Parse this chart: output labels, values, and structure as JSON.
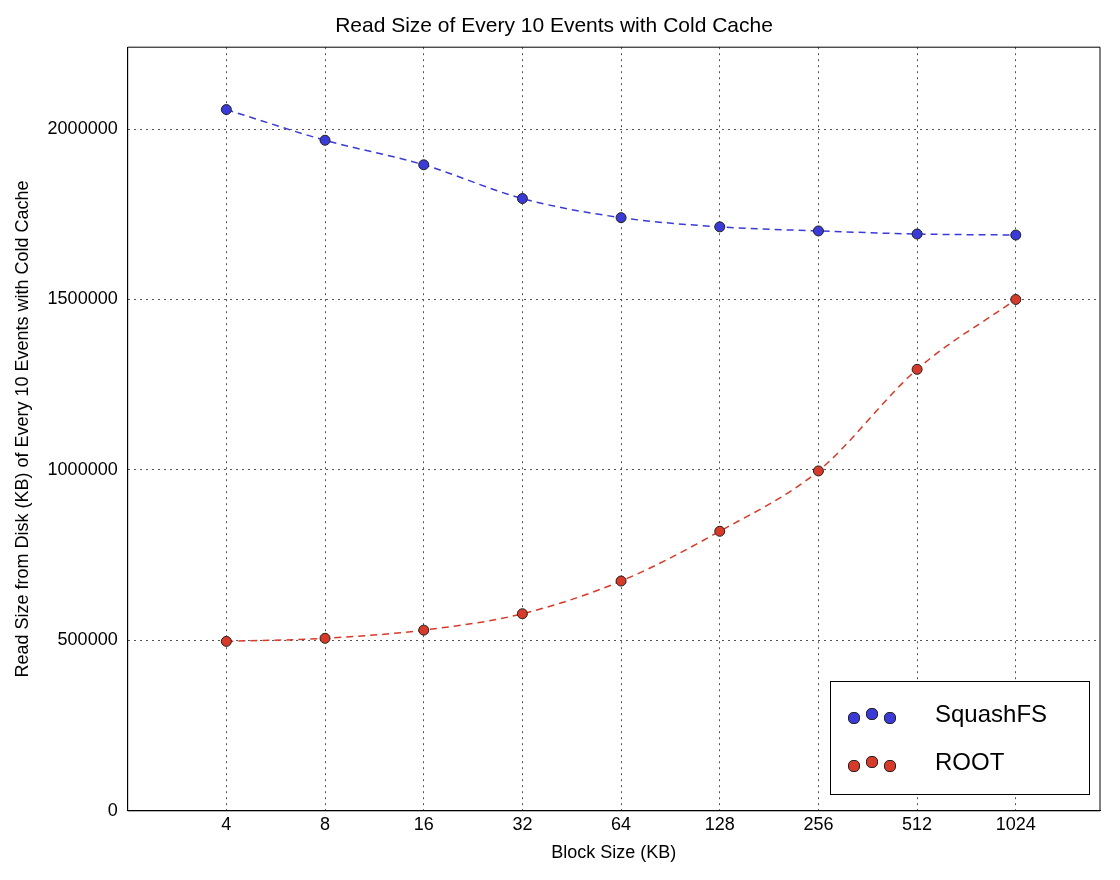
{
  "chart_data": {
    "type": "line",
    "title": "Read Size of Every 10 Events with Cold Cache",
    "xlabel": "Block Size (KB)",
    "ylabel": "Read Size from Disk (KB) of Every 10 Events with Cold Cache",
    "x": [
      4,
      8,
      16,
      32,
      64,
      128,
      256,
      512,
      1024
    ],
    "log": "x",
    "xlim": [
      2,
      1850
    ],
    "xticks": [
      4,
      8,
      16,
      32,
      64,
      128,
      256,
      512,
      1024
    ],
    "ylim": [
      0,
      2240000
    ],
    "yticks": [
      0,
      500000,
      1000000,
      1500000,
      2000000
    ],
    "grid": true,
    "legend": "bottom right",
    "marker": "circle",
    "line_style": "dashed",
    "series": [
      {
        "name": "SquashFS",
        "color": "#3a3ad8",
        "values": [
          2057000,
          1967000,
          1895000,
          1796000,
          1740000,
          1713000,
          1701000,
          1692000,
          1689000
        ]
      },
      {
        "name": "ROOT",
        "color": "#d83a2a",
        "values": [
          497000,
          506000,
          530000,
          578000,
          674000,
          820000,
          997000,
          1295000,
          1500000
        ]
      }
    ]
  }
}
